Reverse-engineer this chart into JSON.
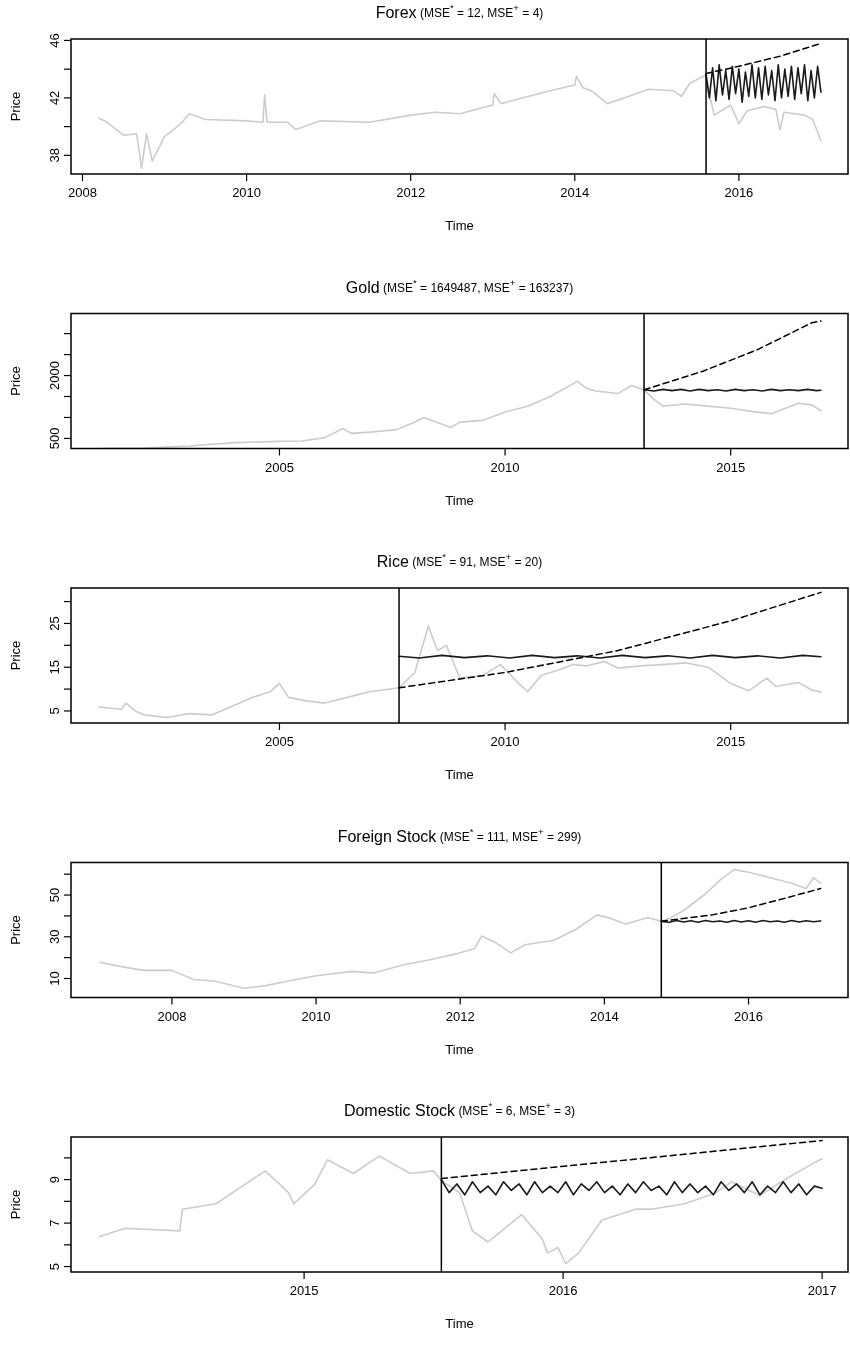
{
  "chart_data": [
    {
      "type": "line",
      "title": "Forex",
      "subtitle": "(MSE$^{*}$ = 12, MSE$^{+}$ = 4)",
      "xlabel": "Time",
      "ylabel": "Price",
      "xlim": [
        2007.86,
        2017.33
      ],
      "xticks": [
        2008,
        2010,
        2012,
        2014,
        2016
      ],
      "ylim": [
        36.7,
        46.1
      ],
      "yticks": [
        38,
        {
          "value": 40,
          "label": null
        },
        42,
        {
          "value": 44,
          "label": null
        },
        46
      ],
      "ref_lines": [
        {
          "axis": "x",
          "value": 2015.6,
          "color": "#000000"
        }
      ],
      "series": [
        {
          "color": "#cccccc",
          "x": [
            2008.2,
            2008.3,
            2008.5,
            2008.66,
            2008.72,
            2008.78,
            2008.85,
            2009.0,
            2009.2,
            2009.3,
            2009.5,
            2010.0,
            2010.2,
            2010.22,
            2010.25,
            2010.5,
            2010.6,
            2010.9,
            2011.5,
            2012.0,
            2012.3,
            2012.6,
            2013.0,
            2013.02,
            2013.1,
            2013.5,
            2013.7,
            2014.0,
            2014.02,
            2014.1,
            2014.2,
            2014.4,
            2014.6,
            2014.9,
            2015.2,
            2015.3,
            2015.4,
            2015.6,
            2015.65,
            2015.7,
            2015.9,
            2016.0,
            2016.1,
            2016.3,
            2016.45,
            2016.5,
            2016.55,
            2016.8,
            2016.9,
            2017.0
          ],
          "values": [
            40.6,
            40.3,
            39.4,
            39.5,
            37.1,
            39.5,
            37.6,
            39.3,
            40.2,
            40.9,
            40.5,
            40.4,
            40.3,
            42.2,
            40.3,
            40.3,
            39.8,
            40.4,
            40.3,
            40.8,
            41.0,
            40.9,
            41.5,
            42.3,
            41.6,
            42.2,
            42.5,
            42.9,
            43.5,
            42.7,
            42.5,
            41.6,
            42.0,
            42.6,
            42.5,
            42.1,
            43.0,
            43.6,
            42.0,
            40.8,
            41.5,
            40.2,
            41.1,
            41.4,
            41.2,
            39.8,
            41.0,
            40.8,
            40.5,
            39.0
          ]
        },
        {
          "color": "#1a1a1a",
          "x": [
            2015.6,
            2015.64,
            2015.68,
            2015.72,
            2015.76,
            2015.8,
            2015.84,
            2015.88,
            2015.92,
            2015.96,
            2016.0,
            2016.04,
            2016.08,
            2016.12,
            2016.16,
            2016.2,
            2016.24,
            2016.28,
            2016.32,
            2016.36,
            2016.4,
            2016.44,
            2016.48,
            2016.52,
            2016.56,
            2016.6,
            2016.64,
            2016.68,
            2016.72,
            2016.76,
            2016.8,
            2016.84,
            2016.88,
            2016.92,
            2016.96,
            2017.0
          ],
          "values": [
            43.6,
            42.0,
            44.1,
            41.8,
            44.3,
            42.2,
            43.9,
            41.9,
            44.2,
            42.3,
            44.0,
            41.7,
            43.8,
            42.1,
            44.3,
            42.0,
            44.1,
            41.9,
            44.2,
            42.2,
            43.9,
            41.8,
            44.3,
            42.0,
            44.0,
            42.1,
            44.2,
            41.9,
            44.1,
            42.3,
            44.3,
            41.8,
            43.9,
            42.0,
            44.2,
            42.4
          ]
        },
        {
          "color": "#000000",
          "line_style": "dashed",
          "x": [
            2015.6,
            2016.0,
            2016.5,
            2017.0
          ],
          "values": [
            43.7,
            44.2,
            44.9,
            45.8
          ]
        }
      ]
    },
    {
      "type": "line",
      "title": "Gold",
      "subtitle": "(MSE$^{*}$ = 1649487, MSE$^{+}$ = 163237)",
      "xlabel": "Time",
      "ylabel": "Price",
      "xlim": [
        2000.38,
        2017.6
      ],
      "xticks": [
        2005,
        2010,
        2015
      ],
      "ylim": [
        260,
        3480
      ],
      "yticks": [
        500,
        {
          "value": 1000,
          "label": null
        },
        {
          "value": 1500,
          "label": null
        },
        2000,
        {
          "value": 2500,
          "label": null
        },
        {
          "value": 3000,
          "label": null
        }
      ],
      "ref_lines": [
        {
          "axis": "x",
          "value": 2013.08,
          "color": "#000000"
        }
      ],
      "series": [
        {
          "color": "#cccccc",
          "x": [
            2001.0,
            2002.0,
            2003.0,
            2004.0,
            2005.0,
            2005.5,
            2006.0,
            2006.4,
            2006.6,
            2007.0,
            2007.6,
            2008.0,
            2008.2,
            2008.8,
            2009.0,
            2009.5,
            2010.0,
            2010.5,
            2011.0,
            2011.6,
            2011.8,
            2012.0,
            2012.5,
            2012.8,
            2013.08,
            2013.3,
            2013.5,
            2014.0,
            2014.5,
            2015.0,
            2015.5,
            2015.9,
            2016.5,
            2016.8,
            2017.0
          ],
          "values": [
            260,
            270,
            320,
            400,
            430,
            440,
            520,
            730,
            620,
            650,
            710,
            890,
            1000,
            760,
            890,
            930,
            1130,
            1270,
            1500,
            1860,
            1700,
            1630,
            1570,
            1760,
            1660,
            1430,
            1270,
            1320,
            1270,
            1220,
            1140,
            1090,
            1340,
            1300,
            1160
          ]
        },
        {
          "color": "#1a1a1a",
          "x": [
            2013.08,
            2013.3,
            2013.5,
            2013.7,
            2013.9,
            2014.1,
            2014.3,
            2014.5,
            2014.7,
            2014.9,
            2015.1,
            2015.3,
            2015.5,
            2015.7,
            2015.9,
            2016.1,
            2016.3,
            2016.5,
            2016.7,
            2016.9,
            2017.0
          ],
          "values": [
            1660,
            1630,
            1670,
            1640,
            1670,
            1630,
            1670,
            1640,
            1660,
            1630,
            1670,
            1640,
            1660,
            1630,
            1670,
            1640,
            1660,
            1640,
            1670,
            1640,
            1650
          ]
        },
        {
          "color": "#000000",
          "line_style": "dashed",
          "x": [
            2013.08,
            2014.4,
            2015.6,
            2016.8,
            2017.0
          ],
          "values": [
            1660,
            2110,
            2620,
            3260,
            3300
          ]
        }
      ]
    },
    {
      "type": "line",
      "title": "Rice",
      "subtitle": "(MSE$^{*}$ = 91, MSE$^{+}$ = 20)",
      "xlabel": "Time",
      "ylabel": "Price",
      "xlim": [
        2000.38,
        2017.6
      ],
      "xticks": [
        2005,
        2010,
        2015
      ],
      "ylim": [
        2.25,
        33.1
      ],
      "yticks": [
        5,
        {
          "value": 10,
          "label": null
        },
        15,
        {
          "value": 20,
          "label": null
        },
        25,
        {
          "value": 30,
          "label": null
        }
      ],
      "ref_lines": [
        {
          "axis": "x",
          "value": 2007.65,
          "color": "#000000"
        }
      ],
      "series": [
        {
          "color": "#cccccc",
          "x": [
            2001.0,
            2001.5,
            2001.6,
            2001.8,
            2002.0,
            2002.5,
            2003.0,
            2003.5,
            2004.0,
            2004.4,
            2004.8,
            2005.0,
            2005.2,
            2005.6,
            2006.0,
            2006.5,
            2007.0,
            2007.65,
            2008.0,
            2008.3,
            2008.5,
            2008.7,
            2009.0,
            2009.5,
            2009.9,
            2010.3,
            2010.5,
            2010.8,
            2011.2,
            2011.5,
            2011.8,
            2012.2,
            2012.5,
            2013.0,
            2013.5,
            2014.0,
            2014.5,
            2015.0,
            2015.4,
            2015.8,
            2016.0,
            2016.5,
            2016.8,
            2017.0
          ],
          "values": [
            5.9,
            5.4,
            6.8,
            5.0,
            4.1,
            3.5,
            4.4,
            4.1,
            6.3,
            8.1,
            9.4,
            11.3,
            8.1,
            7.3,
            6.8,
            8.1,
            9.4,
            10.3,
            13.8,
            24.4,
            18.8,
            20.0,
            12.5,
            13.1,
            15.6,
            11.3,
            9.4,
            13.1,
            14.4,
            15.6,
            15.3,
            16.3,
            14.8,
            15.3,
            15.6,
            16.0,
            15.0,
            11.3,
            9.6,
            12.5,
            10.6,
            11.5,
            9.8,
            9.3
          ]
        },
        {
          "color": "#1a1a1a",
          "x": [
            2007.65,
            2008.1,
            2008.6,
            2009.1,
            2009.6,
            2010.1,
            2010.6,
            2011.1,
            2011.6,
            2012.1,
            2012.6,
            2013.1,
            2013.6,
            2014.1,
            2014.6,
            2015.1,
            2015.6,
            2016.1,
            2016.6,
            2017.0
          ],
          "values": [
            17.5,
            17.1,
            17.7,
            17.2,
            17.6,
            17.1,
            17.7,
            17.2,
            17.6,
            17.1,
            17.7,
            17.2,
            17.6,
            17.1,
            17.7,
            17.2,
            17.6,
            17.1,
            17.7,
            17.4
          ]
        },
        {
          "color": "#000000",
          "line_style": "dashed",
          "x": [
            2007.65,
            2010.0,
            2012.5,
            2015.0,
            2017.0
          ],
          "values": [
            10.3,
            13.8,
            18.8,
            25.6,
            32.1
          ]
        }
      ]
    },
    {
      "type": "line",
      "title": "Foreign Stock",
      "subtitle": "(MSE$^{*}$ = 111, MSE$^{+}$ = 299)",
      "xlabel": "Time",
      "ylabel": "Price",
      "xlim": [
        2006.6,
        2017.38
      ],
      "xticks": [
        2008,
        2010,
        2012,
        2014,
        2016
      ],
      "ylim": [
        0.9,
        65.6
      ],
      "yticks": [
        10,
        {
          "value": 20,
          "label": null
        },
        30,
        {
          "value": 40,
          "label": null
        },
        50,
        {
          "value": 60,
          "label": null
        }
      ],
      "ref_lines": [
        {
          "axis": "x",
          "value": 2014.79,
          "color": "#000000"
        }
      ],
      "series": [
        {
          "color": "#cccccc",
          "x": [
            2007.0,
            2007.3,
            2007.6,
            2008.0,
            2008.3,
            2008.6,
            2009.0,
            2009.3,
            2009.6,
            2010.0,
            2010.5,
            2010.8,
            2011.2,
            2011.6,
            2012.0,
            2012.2,
            2012.3,
            2012.5,
            2012.7,
            2012.9,
            2013.3,
            2013.6,
            2013.9,
            2014.1,
            2014.3,
            2014.6,
            2014.79,
            2014.9,
            2015.1,
            2015.4,
            2015.6,
            2015.8,
            2016.0,
            2016.3,
            2016.6,
            2016.8,
            2016.9,
            2017.0
          ],
          "values": [
            17.8,
            15.7,
            13.9,
            13.9,
            9.5,
            8.7,
            5.3,
            6.6,
            8.7,
            11.3,
            13.4,
            12.6,
            16.5,
            19.1,
            22.3,
            24.4,
            30.4,
            27.0,
            22.3,
            26.2,
            28.3,
            33.5,
            40.5,
            38.7,
            36.1,
            39.2,
            37.4,
            38.7,
            42.6,
            50.5,
            57.0,
            62.2,
            60.9,
            58.3,
            55.7,
            53.1,
            58.3,
            55.7
          ]
        },
        {
          "color": "#1a1a1a",
          "x": [
            2014.79,
            2014.9,
            2015.0,
            2015.1,
            2015.2,
            2015.3,
            2015.4,
            2015.5,
            2015.6,
            2015.7,
            2015.8,
            2015.9,
            2016.0,
            2016.1,
            2016.2,
            2016.3,
            2016.4,
            2016.5,
            2016.6,
            2016.7,
            2016.8,
            2016.9,
            2017.0
          ],
          "values": [
            37.4,
            37.0,
            37.8,
            37.1,
            37.7,
            37.0,
            37.8,
            37.2,
            37.6,
            37.0,
            37.8,
            37.1,
            37.7,
            37.0,
            37.8,
            37.2,
            37.6,
            37.0,
            37.8,
            37.1,
            37.7,
            37.2,
            37.6
          ]
        },
        {
          "color": "#000000",
          "line_style": "dashed",
          "x": [
            2014.79,
            2015.5,
            2016.0,
            2016.5,
            2017.0
          ],
          "values": [
            37.4,
            40.5,
            43.9,
            48.4,
            53.1
          ]
        }
      ]
    },
    {
      "type": "line",
      "title": "Domestic Stock",
      "subtitle": "(MSE$^{*}$ = 6, MSE$^{+}$ = 3)",
      "xlabel": "Time",
      "ylabel": "Price",
      "xlim": [
        2014.1,
        2017.1
      ],
      "xticks": [
        2015,
        2016,
        2017
      ],
      "ylim": [
        4.75,
        10.96
      ],
      "yticks": [
        5,
        {
          "value": 6,
          "label": null
        },
        7,
        {
          "value": 8,
          "label": null
        },
        9,
        {
          "value": 10,
          "label": null
        }
      ],
      "ref_lines": [
        {
          "axis": "x",
          "value": 2015.53,
          "color": "#000000"
        }
      ],
      "series": [
        {
          "color": "#cccccc",
          "x": [
            2014.21,
            2014.31,
            2014.52,
            2014.53,
            2014.66,
            2014.77,
            2014.85,
            2014.94,
            2014.96,
            2015.04,
            2015.09,
            2015.19,
            2015.29,
            2015.41,
            2015.5,
            2015.53,
            2015.6,
            2015.65,
            2015.71,
            2015.84,
            2015.92,
            2015.94,
            2015.98,
            2016.01,
            2016.06,
            2016.15,
            2016.28,
            2016.34,
            2016.47,
            2016.59,
            2016.65,
            2016.76,
            2016.86,
            2016.97,
            2017.0
          ],
          "values": [
            6.38,
            6.76,
            6.64,
            7.64,
            7.89,
            8.77,
            9.4,
            8.4,
            7.89,
            8.77,
            9.91,
            9.28,
            10.08,
            9.28,
            9.4,
            8.95,
            8.4,
            6.64,
            6.13,
            7.39,
            6.26,
            5.63,
            5.88,
            5.13,
            5.63,
            7.14,
            7.64,
            7.64,
            7.89,
            8.4,
            8.9,
            8.27,
            9.03,
            9.78,
            9.96
          ]
        },
        {
          "color": "#1a1a1a",
          "x": [
            2015.53,
            2015.56,
            2015.59,
            2015.62,
            2015.65,
            2015.68,
            2015.71,
            2015.74,
            2015.77,
            2015.8,
            2015.83,
            2015.86,
            2015.89,
            2015.92,
            2015.95,
            2015.98,
            2016.01,
            2016.04,
            2016.07,
            2016.1,
            2016.13,
            2016.16,
            2016.19,
            2016.22,
            2016.25,
            2016.28,
            2016.31,
            2016.34,
            2016.37,
            2016.4,
            2016.43,
            2016.46,
            2016.49,
            2016.52,
            2016.55,
            2016.58,
            2016.61,
            2016.64,
            2016.67,
            2016.7,
            2016.73,
            2016.76,
            2016.79,
            2016.82,
            2016.85,
            2016.88,
            2016.91,
            2016.94,
            2016.97,
            2017.0
          ],
          "values": [
            9.0,
            8.4,
            8.8,
            8.3,
            8.9,
            8.4,
            8.7,
            8.3,
            8.9,
            8.5,
            8.8,
            8.3,
            8.9,
            8.4,
            8.7,
            8.4,
            8.9,
            8.3,
            8.8,
            8.5,
            8.9,
            8.4,
            8.7,
            8.3,
            8.8,
            8.4,
            8.9,
            8.5,
            8.7,
            8.3,
            8.9,
            8.4,
            8.8,
            8.4,
            8.7,
            8.3,
            8.9,
            8.5,
            8.8,
            8.4,
            8.9,
            8.3,
            8.7,
            8.4,
            8.9,
            8.4,
            8.8,
            8.3,
            8.7,
            8.6
          ]
        },
        {
          "color": "#000000",
          "line_style": "dashed",
          "x": [
            2015.53,
            2017.0
          ],
          "values": [
            9.05,
            10.8
          ]
        }
      ]
    }
  ]
}
